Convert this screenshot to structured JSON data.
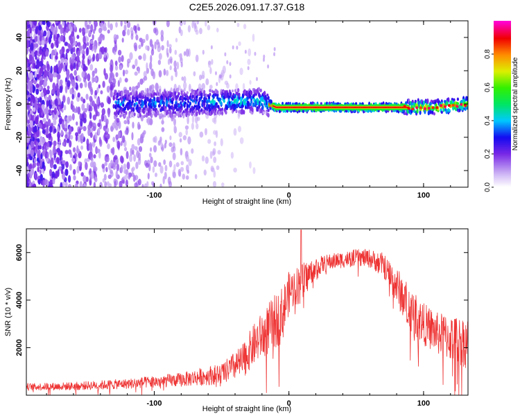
{
  "chart_data": [
    {
      "type": "heatmap",
      "title": "C2E5.2026.091.17.37.G18",
      "xlabel": "Height of straight line (km)",
      "ylabel": "Frequency (Hz)",
      "xlim": [
        -195,
        133
      ],
      "ylim": [
        -50,
        50
      ],
      "xticks": [
        -100,
        0,
        100
      ],
      "yticks": [
        -40,
        -20,
        0,
        20,
        40
      ],
      "colorbar": {
        "label": "Normalized spectral amplitude",
        "range": [
          0,
          1
        ],
        "ticks": [
          0.0,
          0.2,
          0.4,
          0.6,
          0.8
        ],
        "tick_labels": [
          "0.0",
          "0.2",
          "0.4",
          "0.6",
          "0.8"
        ]
      },
      "description_series": {
        "noise_region_x": [
          -195,
          -35
        ],
        "signal_band_center_hz": [
          {
            "x": -130,
            "hz": 0
          },
          {
            "x": -60,
            "hz": 1
          },
          {
            "x": -20,
            "hz": 2
          },
          {
            "x": -10,
            "hz": -2
          },
          {
            "x": 0,
            "hz": -2
          },
          {
            "x": 85,
            "hz": -2
          },
          {
            "x": 110,
            "hz": -2
          },
          {
            "x": 133,
            "hz": 0
          }
        ]
      }
    },
    {
      "type": "line",
      "xlabel": "Height of straight line (km)",
      "ylabel": "SNR (10 * v/v)",
      "xlim": [
        -195,
        133
      ],
      "ylim": [
        0,
        7000
      ],
      "xticks": [
        -100,
        0,
        100
      ],
      "yticks": [
        2000,
        4000,
        6000
      ],
      "series": [
        {
          "name": "SNR",
          "color": "#ee3333",
          "envelope_x": [
            -195,
            -160,
            -120,
            -80,
            -50,
            -35,
            -25,
            -15,
            -5,
            0,
            5,
            10,
            15,
            20,
            30,
            40,
            50,
            60,
            70,
            80,
            90,
            100,
            110,
            120,
            133
          ],
          "envelope_y": [
            350,
            380,
            480,
            650,
            900,
            1400,
            2200,
            2800,
            3400,
            4300,
            4600,
            4700,
            5100,
            5400,
            5600,
            5700,
            5800,
            5750,
            5500,
            4600,
            3600,
            3000,
            2600,
            2400,
            2200
          ],
          "noise_amp": [
            150,
            180,
            220,
            300,
            450,
            700,
            900,
            1100,
            1200,
            900,
            800,
            900,
            600,
            400,
            350,
            350,
            350,
            400,
            500,
            800,
            1000,
            900,
            900,
            1000,
            1100
          ],
          "peak": {
            "x": 9,
            "y": 6950
          }
        }
      ]
    }
  ]
}
